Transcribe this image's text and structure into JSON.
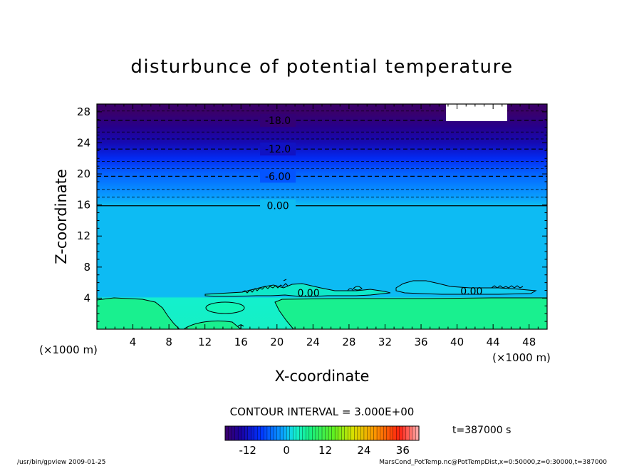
{
  "chart_data": {
    "type": "contour",
    "title": "disturbunce of potential temperature",
    "xlabel": "X-coordinate",
    "ylabel": "Z-coordinate",
    "x_unit": "(×1000 m)",
    "y_unit": "(×1000 m)",
    "xlim": [
      0,
      50
    ],
    "ylim": [
      0,
      29
    ],
    "x_ticks": [
      4,
      8,
      12,
      16,
      20,
      24,
      28,
      32,
      36,
      40,
      44,
      48
    ],
    "y_ticks": [
      4,
      8,
      12,
      16,
      20,
      24,
      28
    ],
    "contour_interval_label": "CONTOUR INTERVAL = 3.000E+00",
    "time_label": "t=387000 s",
    "colorbar": {
      "min": -19,
      "max": 41,
      "ticks": [
        -12,
        0,
        12,
        24,
        36
      ]
    },
    "contour_lines": [
      {
        "value": -18.0,
        "label": "-18.0",
        "z": 26.9,
        "dashed": true
      },
      {
        "value": -12.0,
        "label": "-12.0",
        "z": 23.2,
        "dashed": true
      },
      {
        "value": -6.0,
        "label": "-6.00",
        "z": 19.7,
        "dashed": true
      },
      {
        "value": 0.0,
        "label": "0.00",
        "z": 15.9,
        "dashed": false
      }
    ],
    "minor_dashed_z": [
      28.1,
      25.4,
      24.5,
      21.6,
      20.7,
      18.0,
      17.0
    ],
    "lower_labels": [
      {
        "label": "0.00",
        "x": 23.5,
        "z": 4.7
      },
      {
        "label": "0.00",
        "x": 41.6,
        "z": 4.9
      }
    ],
    "field_rows": [
      {
        "z": 29.0,
        "value": -19
      },
      {
        "z": 28.0,
        "value": -19
      },
      {
        "z": 26.0,
        "value": -16
      },
      {
        "z": 24.0,
        "value": -13
      },
      {
        "z": 22.0,
        "value": -9
      },
      {
        "z": 20.0,
        "value": -5
      },
      {
        "z": 17.0,
        "value": -1.5
      },
      {
        "z": 16.0,
        "value": 0
      },
      {
        "z": 4.2,
        "value": 0
      },
      {
        "z": 4.0,
        "value": 3
      },
      {
        "z": 0.0,
        "value": 3.5
      }
    ]
  },
  "footer": {
    "left": "/usr/bin/gpview   2009-01-25",
    "right": "MarsCond_PotTemp.nc@PotTempDist,x=0:50000,z=0:30000,t=387000"
  }
}
